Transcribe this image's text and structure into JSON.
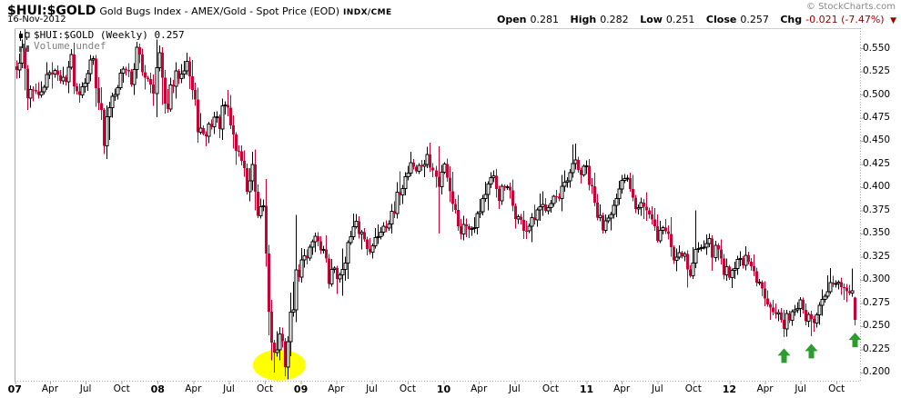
{
  "header": {
    "symbol": "$HUI:$GOLD",
    "description": "Gold Bugs Index - AMEX/Gold - Spot Price (EOD)",
    "exchange": "INDX/CME",
    "date": "16-Nov-2012",
    "copyright": "© StockCharts.com"
  },
  "quote": {
    "open_label": "Open",
    "open": "0.281",
    "high_label": "High",
    "high": "0.282",
    "low_label": "Low",
    "low": "0.251",
    "close_label": "Close",
    "close": "0.257",
    "chg_label": "Chg",
    "chg": "-0.021 (-7.47%)",
    "direction_glyph": "▼"
  },
  "legend": {
    "series_label": "$HUI:$GOLD (Weekly) 0.257",
    "volume_label": "Volume undef"
  },
  "colors": {
    "down_candle": "#CC0033",
    "up_candle_stroke": "#000000",
    "up_candle_fill": "#FFFFFF",
    "annotation_green": "#2E9B2E",
    "highlight_yellow": "#FFFF00",
    "border_gray": "#A9A9A9",
    "top_border_gray": "#CCCCCC",
    "muted_text": "#808080",
    "chg_text": "#990000"
  },
  "axes": {
    "y_domain": [
      0.1911,
      0.5716
    ],
    "y_ticks": [
      0.55,
      0.525,
      0.5,
      0.475,
      0.45,
      0.425,
      0.4,
      0.375,
      0.35,
      0.325,
      0.3,
      0.275,
      0.25,
      0.225,
      0.2
    ],
    "x_labels": [
      {
        "text": "07",
        "year": true,
        "date": "2007-01-01"
      },
      {
        "text": "Apr",
        "year": false,
        "date": "2007-04-01"
      },
      {
        "text": "Jul",
        "year": false,
        "date": "2007-07-01"
      },
      {
        "text": "Oct",
        "year": false,
        "date": "2007-10-01"
      },
      {
        "text": "08",
        "year": true,
        "date": "2008-01-01"
      },
      {
        "text": "Apr",
        "year": false,
        "date": "2008-04-01"
      },
      {
        "text": "Jul",
        "year": false,
        "date": "2008-07-01"
      },
      {
        "text": "Oct",
        "year": false,
        "date": "2008-10-01"
      },
      {
        "text": "09",
        "year": true,
        "date": "2009-01-01"
      },
      {
        "text": "Apr",
        "year": false,
        "date": "2009-04-01"
      },
      {
        "text": "Jul",
        "year": false,
        "date": "2009-07-01"
      },
      {
        "text": "Oct",
        "year": false,
        "date": "2009-10-01"
      },
      {
        "text": "10",
        "year": true,
        "date": "2010-01-01"
      },
      {
        "text": "Apr",
        "year": false,
        "date": "2010-04-01"
      },
      {
        "text": "Jul",
        "year": false,
        "date": "2010-07-01"
      },
      {
        "text": "Oct",
        "year": false,
        "date": "2010-10-01"
      },
      {
        "text": "11",
        "year": true,
        "date": "2011-01-01"
      },
      {
        "text": "Apr",
        "year": false,
        "date": "2011-04-01"
      },
      {
        "text": "Jul",
        "year": false,
        "date": "2011-07-01"
      },
      {
        "text": "Oct",
        "year": false,
        "date": "2011-10-01"
      },
      {
        "text": "12",
        "year": true,
        "date": "2012-01-01"
      },
      {
        "text": "Apr",
        "year": false,
        "date": "2012-04-01"
      },
      {
        "text": "Jul",
        "year": false,
        "date": "2012-07-01"
      },
      {
        "text": "Oct",
        "year": false,
        "date": "2012-10-01"
      }
    ]
  },
  "chart_data": {
    "type": "candlestick",
    "timeframe": "weekly",
    "symbol": "$HUI:$GOLD",
    "start": "2007-01-05",
    "end": "2012-11-16",
    "noise": 0.006,
    "seed": 42,
    "last_candle": {
      "open": 0.281,
      "high": 0.282,
      "low": 0.251,
      "close": 0.257
    },
    "anchors": [
      [
        "2007-01-05",
        0.525
      ],
      [
        "2007-01-19",
        0.545
      ],
      [
        "2007-02-02",
        0.502
      ],
      [
        "2007-02-16",
        0.508
      ],
      [
        "2007-03-02",
        0.495
      ],
      [
        "2007-03-16",
        0.512
      ],
      [
        "2007-03-30",
        0.52
      ],
      [
        "2007-04-13",
        0.53
      ],
      [
        "2007-04-27",
        0.512
      ],
      [
        "2007-05-11",
        0.522
      ],
      [
        "2007-05-25",
        0.538
      ],
      [
        "2007-06-08",
        0.502
      ],
      [
        "2007-06-22",
        0.512
      ],
      [
        "2007-07-06",
        0.528
      ],
      [
        "2007-07-20",
        0.538
      ],
      [
        "2007-08-03",
        0.5
      ],
      [
        "2007-08-17",
        0.445
      ],
      [
        "2007-08-31",
        0.49
      ],
      [
        "2007-09-14",
        0.508
      ],
      [
        "2007-09-28",
        0.522
      ],
      [
        "2007-10-12",
        0.53
      ],
      [
        "2007-10-26",
        0.515
      ],
      [
        "2007-11-09",
        0.548
      ],
      [
        "2007-11-23",
        0.524
      ],
      [
        "2007-12-07",
        0.52
      ],
      [
        "2007-12-21",
        0.508
      ],
      [
        "2008-01-04",
        0.542
      ],
      [
        "2008-01-18",
        0.482
      ],
      [
        "2008-02-01",
        0.502
      ],
      [
        "2008-02-15",
        0.518
      ],
      [
        "2008-02-29",
        0.528
      ],
      [
        "2008-03-14",
        0.538
      ],
      [
        "2008-03-28",
        0.502
      ],
      [
        "2008-04-11",
        0.468
      ],
      [
        "2008-04-25",
        0.452
      ],
      [
        "2008-05-09",
        0.465
      ],
      [
        "2008-05-23",
        0.475
      ],
      [
        "2008-06-06",
        0.468
      ],
      [
        "2008-06-20",
        0.488
      ],
      [
        "2008-07-04",
        0.468
      ],
      [
        "2008-07-18",
        0.442
      ],
      [
        "2008-08-01",
        0.432
      ],
      [
        "2008-08-15",
        0.398
      ],
      [
        "2008-08-29",
        0.418
      ],
      [
        "2008-09-12",
        0.36
      ],
      [
        "2008-09-26",
        0.382
      ],
      [
        "2008-10-10",
        0.272
      ],
      [
        "2008-10-24",
        0.218
      ],
      [
        "2008-11-07",
        0.238
      ],
      [
        "2008-11-21",
        0.212
      ],
      [
        "2008-12-05",
        0.256
      ],
      [
        "2008-12-19",
        0.3
      ],
      [
        "2009-01-02",
        0.318
      ],
      [
        "2009-01-16",
        0.328
      ],
      [
        "2009-01-30",
        0.346
      ],
      [
        "2009-02-13",
        0.344
      ],
      [
        "2009-02-27",
        0.33
      ],
      [
        "2009-03-13",
        0.298
      ],
      [
        "2009-03-27",
        0.314
      ],
      [
        "2009-04-10",
        0.3
      ],
      [
        "2009-04-24",
        0.328
      ],
      [
        "2009-05-08",
        0.344
      ],
      [
        "2009-05-22",
        0.358
      ],
      [
        "2009-06-05",
        0.35
      ],
      [
        "2009-06-19",
        0.338
      ],
      [
        "2009-07-03",
        0.334
      ],
      [
        "2009-07-17",
        0.35
      ],
      [
        "2009-07-31",
        0.36
      ],
      [
        "2009-08-14",
        0.364
      ],
      [
        "2009-08-28",
        0.37
      ],
      [
        "2009-09-11",
        0.398
      ],
      [
        "2009-09-25",
        0.41
      ],
      [
        "2009-10-09",
        0.428
      ],
      [
        "2009-10-23",
        0.418
      ],
      [
        "2009-11-06",
        0.424
      ],
      [
        "2009-11-20",
        0.43
      ],
      [
        "2009-12-04",
        0.418
      ],
      [
        "2009-12-18",
        0.4
      ],
      [
        "2010-01-01",
        0.428
      ],
      [
        "2010-01-15",
        0.4
      ],
      [
        "2010-01-29",
        0.372
      ],
      [
        "2010-02-12",
        0.354
      ],
      [
        "2010-02-26",
        0.36
      ],
      [
        "2010-03-12",
        0.358
      ],
      [
        "2010-03-26",
        0.37
      ],
      [
        "2010-04-09",
        0.388
      ],
      [
        "2010-04-23",
        0.4
      ],
      [
        "2010-05-07",
        0.408
      ],
      [
        "2010-05-21",
        0.39
      ],
      [
        "2010-06-04",
        0.4
      ],
      [
        "2010-06-18",
        0.39
      ],
      [
        "2010-07-02",
        0.372
      ],
      [
        "2010-07-16",
        0.36
      ],
      [
        "2010-07-30",
        0.354
      ],
      [
        "2010-08-13",
        0.36
      ],
      [
        "2010-08-27",
        0.37
      ],
      [
        "2010-09-10",
        0.378
      ],
      [
        "2010-09-24",
        0.384
      ],
      [
        "2010-10-08",
        0.39
      ],
      [
        "2010-10-22",
        0.384
      ],
      [
        "2010-11-05",
        0.4
      ],
      [
        "2010-11-19",
        0.41
      ],
      [
        "2010-12-03",
        0.428
      ],
      [
        "2010-12-17",
        0.414
      ],
      [
        "2010-12-31",
        0.42
      ],
      [
        "2011-01-14",
        0.392
      ],
      [
        "2011-01-28",
        0.37
      ],
      [
        "2011-02-11",
        0.358
      ],
      [
        "2011-02-25",
        0.374
      ],
      [
        "2011-03-11",
        0.378
      ],
      [
        "2011-03-25",
        0.39
      ],
      [
        "2011-04-08",
        0.41
      ],
      [
        "2011-04-22",
        0.404
      ],
      [
        "2011-05-06",
        0.382
      ],
      [
        "2011-05-20",
        0.386
      ],
      [
        "2011-06-03",
        0.374
      ],
      [
        "2011-06-17",
        0.36
      ],
      [
        "2011-07-01",
        0.346
      ],
      [
        "2011-07-15",
        0.356
      ],
      [
        "2011-07-29",
        0.35
      ],
      [
        "2011-08-12",
        0.322
      ],
      [
        "2011-08-26",
        0.332
      ],
      [
        "2011-09-09",
        0.328
      ],
      [
        "2011-09-23",
        0.304
      ],
      [
        "2011-10-07",
        0.33
      ],
      [
        "2011-10-21",
        0.34
      ],
      [
        "2011-11-04",
        0.344
      ],
      [
        "2011-11-18",
        0.33
      ],
      [
        "2011-12-02",
        0.334
      ],
      [
        "2011-12-16",
        0.312
      ],
      [
        "2011-12-30",
        0.308
      ],
      [
        "2012-01-13",
        0.316
      ],
      [
        "2012-01-27",
        0.322
      ],
      [
        "2012-02-10",
        0.32
      ],
      [
        "2012-02-24",
        0.312
      ],
      [
        "2012-03-09",
        0.296
      ],
      [
        "2012-03-23",
        0.29
      ],
      [
        "2012-04-06",
        0.28
      ],
      [
        "2012-04-20",
        0.272
      ],
      [
        "2012-05-04",
        0.262
      ],
      [
        "2012-05-18",
        0.246
      ],
      [
        "2012-06-01",
        0.264
      ],
      [
        "2012-06-15",
        0.27
      ],
      [
        "2012-06-29",
        0.274
      ],
      [
        "2012-07-13",
        0.26
      ],
      [
        "2012-07-27",
        0.252
      ],
      [
        "2012-08-10",
        0.262
      ],
      [
        "2012-08-24",
        0.272
      ],
      [
        "2012-09-07",
        0.286
      ],
      [
        "2012-09-21",
        0.298
      ],
      [
        "2012-10-05",
        0.294
      ],
      [
        "2012-10-19",
        0.289
      ],
      [
        "2012-11-02",
        0.285
      ],
      [
        "2012-11-09",
        0.278
      ],
      [
        "2012-11-16",
        0.257
      ]
    ],
    "wick_events": {
      "2007-08-17": {
        "low": 0.436
      },
      "2007-11-09": {
        "high": 0.557
      },
      "2008-01-04": {
        "high": 0.553
      },
      "2008-03-14": {
        "high": 0.545
      },
      "2008-10-10": {
        "low": 0.24
      },
      "2008-10-24": {
        "low": 0.2
      },
      "2008-11-21": {
        "low": 0.196
      },
      "2008-12-19": {
        "high": 0.37
      },
      "2009-12-18": {
        "high": 0.444,
        "low": 0.35
      },
      "2010-12-03": {
        "high": 0.447
      },
      "2011-10-07": {
        "high": 0.375
      },
      "2012-05-18": {
        "low": 0.238
      },
      "2012-07-27": {
        "low": 0.239
      }
    }
  },
  "annotations": {
    "highlight_ellipse": {
      "date": "2008-11-07",
      "value": 0.208,
      "meaning": "2008 crash low"
    },
    "green_arrows": [
      {
        "date": "2012-05-18",
        "tip_value": 0.226
      },
      {
        "date": "2012-07-27",
        "tip_value": 0.231
      },
      {
        "date": "2012-11-16",
        "tip_value": 0.243
      }
    ]
  }
}
